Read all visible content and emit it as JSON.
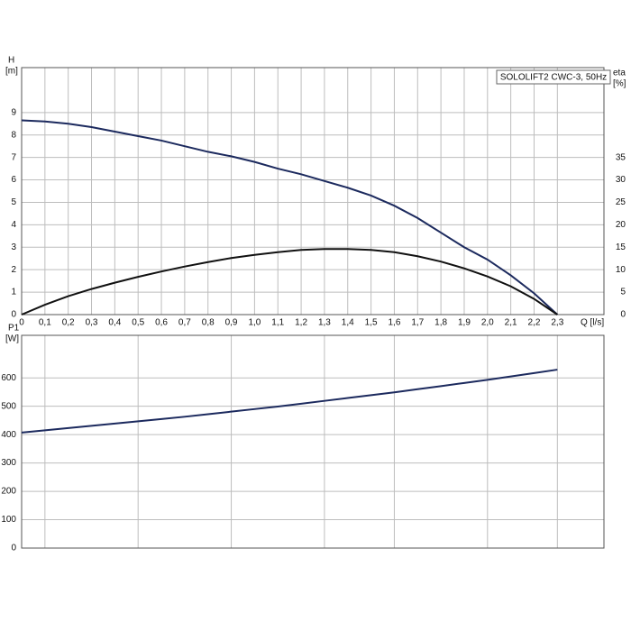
{
  "chart_data": [
    {
      "type": "line",
      "title": "SOLOLIFT2 CWC-3, 50Hz",
      "y_label": [
        "H",
        "[m]"
      ],
      "y2_label": [
        "eta",
        "[%]"
      ],
      "x_label": "Q [l/s]",
      "x": [
        0,
        0.1,
        0.2,
        0.3,
        0.4,
        0.5,
        0.6,
        0.7,
        0.8,
        0.9,
        1.0,
        1.1,
        1.2,
        1.3,
        1.4,
        1.5,
        1.6,
        1.7,
        1.8,
        1.9,
        2.0,
        2.1,
        2.2,
        2.3
      ],
      "xlim": [
        0,
        2.5
      ],
      "xticks": [
        0,
        {
          "value": 0.1,
          "label": "0,1"
        },
        {
          "value": 0.2,
          "label": "0,2"
        },
        {
          "value": 0.3,
          "label": "0,3"
        },
        {
          "value": 0.4,
          "label": "0,4"
        },
        {
          "value": 0.5,
          "label": "0,5"
        },
        {
          "value": 0.6,
          "label": "0,6"
        },
        {
          "value": 0.7,
          "label": "0,7"
        },
        {
          "value": 0.8,
          "label": "0,8"
        },
        {
          "value": 0.9,
          "label": "0,9"
        },
        {
          "value": 1.0,
          "label": "1,0"
        },
        {
          "value": 1.1,
          "label": "1,1"
        },
        {
          "value": 1.2,
          "label": "1,2"
        },
        {
          "value": 1.3,
          "label": "1,3"
        },
        {
          "value": 1.4,
          "label": "1,4"
        },
        {
          "value": 1.5,
          "label": "1,5"
        },
        {
          "value": 1.6,
          "label": "1,6"
        },
        {
          "value": 1.7,
          "label": "1,7"
        },
        {
          "value": 1.8,
          "label": "1,8"
        },
        {
          "value": 1.9,
          "label": "1,9"
        },
        {
          "value": 2.0,
          "label": "2,0"
        },
        {
          "value": 2.1,
          "label": "2,1"
        },
        {
          "value": 2.2,
          "label": "2,2"
        },
        {
          "value": 2.3,
          "label": "2,3"
        }
      ],
      "ylim": [
        0,
        11
      ],
      "yticks": [
        0,
        1,
        2,
        3,
        4,
        5,
        6,
        7,
        8,
        9
      ],
      "y2lim": [
        0,
        55
      ],
      "y2ticks": [
        0,
        5,
        10,
        15,
        20,
        25,
        30,
        35
      ],
      "grid": true,
      "series": [
        {
          "color": "#1c2a5e",
          "values": [
            8.65,
            8.6,
            8.5,
            8.35,
            8.15,
            7.95,
            7.75,
            7.5,
            7.25,
            7.05,
            6.8,
            6.5,
            6.25,
            5.95,
            5.65,
            5.3,
            4.85,
            4.3,
            3.65,
            3.0,
            2.45,
            1.75,
            0.95,
            0
          ]
        },
        {
          "color": "#111111",
          "axis": "y2",
          "values": [
            0,
            2.2,
            4.1,
            5.7,
            7.1,
            8.4,
            9.6,
            10.7,
            11.7,
            12.6,
            13.3,
            13.9,
            14.4,
            14.6,
            14.6,
            14.4,
            13.9,
            13.0,
            11.8,
            10.3,
            8.5,
            6.3,
            3.5,
            0
          ]
        }
      ]
    },
    {
      "type": "line",
      "y_label": [
        "P1",
        "[W]"
      ],
      "x": [
        0,
        0.1,
        0.2,
        0.3,
        0.4,
        0.5,
        0.6,
        0.7,
        0.8,
        0.9,
        1.0,
        1.1,
        1.2,
        1.3,
        1.4,
        1.5,
        1.6,
        1.7,
        1.8,
        1.9,
        2.0,
        2.1,
        2.2,
        2.3
      ],
      "xlim": [
        0,
        2.5
      ],
      "xgrid": [
        0,
        0.1,
        0.5,
        0.9,
        1.3,
        1.6,
        2.0,
        2.3
      ],
      "ylim": [
        0,
        750
      ],
      "yticks": [
        0,
        100,
        200,
        300,
        400,
        500,
        600
      ],
      "grid": true,
      "series": [
        {
          "color": "#1c2a5e",
          "values": [
            407,
            415,
            423,
            431,
            439,
            447,
            455,
            463,
            472,
            481,
            490,
            499,
            509,
            519,
            529,
            539,
            549,
            560,
            571,
            582,
            593,
            605,
            617,
            629
          ]
        }
      ]
    }
  ]
}
